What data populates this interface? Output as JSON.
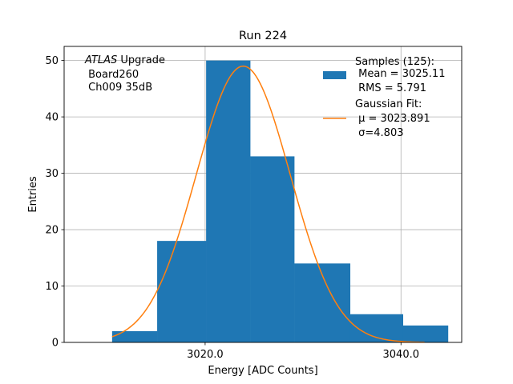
{
  "chart_data": {
    "type": "bar",
    "title": "Run 224",
    "xlabel": "Energy [ADC Counts]",
    "ylabel": "Entries",
    "xlim": [
      1005.6,
      3046.2
    ],
    "ylim": [
      0,
      52.5
    ],
    "grid": true,
    "xticks": [
      {
        "value": 3020,
        "label": "3020.0"
      },
      {
        "value": 3040,
        "label": "3040.0"
      }
    ],
    "yticks": [
      {
        "value": 0,
        "label": "0"
      },
      {
        "value": 10,
        "label": "10"
      },
      {
        "value": 20,
        "label": "20"
      },
      {
        "value": 30,
        "label": "30"
      },
      {
        "value": 40,
        "label": "40"
      },
      {
        "value": 50,
        "label": "50"
      }
    ],
    "histogram": {
      "color": "#1f77b4",
      "bins": [
        {
          "x0": 3010.5,
          "x1": 3015.1,
          "count": 2
        },
        {
          "x0": 3015.1,
          "x1": 3020.1,
          "count": 18
        },
        {
          "x0": 3020.1,
          "x1": 3024.6,
          "count": 50
        },
        {
          "x0": 3024.6,
          "x1": 3029.1,
          "count": 33
        },
        {
          "x0": 3029.1,
          "x1": 3034.8,
          "count": 14
        },
        {
          "x0": 3034.8,
          "x1": 3040.2,
          "count": 5
        },
        {
          "x0": 3040.2,
          "x1": 3044.8,
          "count": 3
        }
      ]
    },
    "fit": {
      "color": "#ff7f0e",
      "mu": 3023.891,
      "sigma": 4.803,
      "amplitude": 49,
      "x_range": [
        3010.5,
        3042.4
      ]
    },
    "annotation": {
      "italic": "ATLAS",
      "lines": [
        " Upgrade",
        " Board260",
        " Ch009 35dB"
      ]
    },
    "legend": {
      "placement": "top-right",
      "entries": [
        {
          "lines": [
            "Samples (125):",
            " Mean = 3025.11",
            " RMS = 5.791"
          ],
          "color": "#1f77b4",
          "kind": "patch"
        },
        {
          "lines": [
            "Gaussian Fit:",
            " μ = 3023.891",
            " σ=4.803"
          ],
          "color": "#ff7f0e",
          "kind": "line"
        }
      ]
    }
  }
}
